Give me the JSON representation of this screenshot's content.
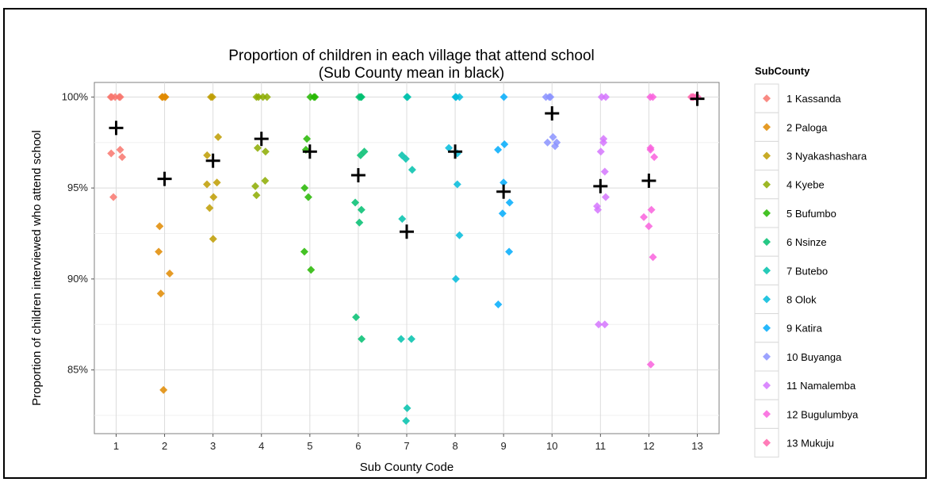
{
  "chart_data": {
    "type": "scatter",
    "title": "Proportion of children in each village that attend school",
    "subtitle": "(Sub County mean in black)",
    "xlabel": "Sub County Code",
    "ylabel": "Proportion of children interviewed who attend school",
    "ylim": [
      81.5,
      100.8
    ],
    "xlim": [
      0.55,
      13.45
    ],
    "x_ticks": [
      "1",
      "2",
      "3",
      "4",
      "5",
      "6",
      "7",
      "8",
      "9",
      "10",
      "11",
      "12",
      "13"
    ],
    "y_ticks": [
      {
        "value": 85,
        "label": "85%"
      },
      {
        "value": 90,
        "label": "90%"
      },
      {
        "value": 95,
        "label": "95%"
      },
      {
        "value": 100,
        "label": "100%"
      }
    ],
    "grid": true,
    "legend_title": "SubCounty",
    "legend_position": "right",
    "mean_marker_color": "#000000",
    "series": [
      {
        "name": "1 Kassanda",
        "code": 1,
        "color": "#F8766D",
        "mean": 98.3,
        "points": [
          100,
          100,
          100,
          100,
          100,
          97.1,
          96.9,
          96.7,
          94.5
        ]
      },
      {
        "name": "2 Paloga",
        "code": 2,
        "color": "#E18A00",
        "mean": 95.5,
        "points": [
          100,
          100,
          100,
          100,
          92.9,
          91.5,
          90.3,
          89.2,
          83.9
        ]
      },
      {
        "name": "3 Nyakashashara",
        "code": 3,
        "color": "#BE9C00",
        "mean": 96.5,
        "points": [
          100,
          100,
          97.8,
          96.8,
          95.3,
          95.2,
          94.5,
          93.9,
          92.2
        ]
      },
      {
        "name": "4 Kyebe",
        "code": 4,
        "color": "#8CAB00",
        "mean": 97.7,
        "points": [
          100,
          100,
          100,
          100,
          97.2,
          97.0,
          95.4,
          95.1,
          94.6
        ]
      },
      {
        "name": "5 Bufumbo",
        "code": 5,
        "color": "#24B700",
        "mean": 97.0,
        "points": [
          100,
          100,
          100,
          97.7,
          97.1,
          95.0,
          94.5,
          91.5,
          90.5
        ]
      },
      {
        "name": "6 Nsinze",
        "code": 6,
        "color": "#00BE70",
        "mean": 95.7,
        "points": [
          100,
          100,
          100,
          97.0,
          96.8,
          94.2,
          93.8,
          93.1,
          87.9,
          86.7
        ]
      },
      {
        "name": "7 Butebo",
        "code": 7,
        "color": "#00C1AB",
        "mean": 92.6,
        "points": [
          100,
          100,
          96.8,
          96.6,
          96.0,
          93.3,
          86.7,
          86.7,
          82.9,
          82.2
        ]
      },
      {
        "name": "8 Olok",
        "code": 8,
        "color": "#00BBDA",
        "mean": 97.0,
        "points": [
          100,
          100,
          100,
          97.2,
          96.9,
          95.2,
          92.4,
          90.0
        ]
      },
      {
        "name": "9 Katira",
        "code": 9,
        "color": "#00ACFC",
        "mean": 94.8,
        "points": [
          100,
          97.4,
          97.1,
          95.3,
          94.2,
          93.6,
          91.5,
          88.6
        ]
      },
      {
        "name": "10 Buyanga",
        "code": 10,
        "color": "#8B93FF",
        "mean": 99.1,
        "points": [
          100,
          100,
          100,
          97.8,
          97.5,
          97.3,
          97.5
        ]
      },
      {
        "name": "11 Namalemba",
        "code": 11,
        "color": "#D575FE",
        "mean": 95.1,
        "points": [
          100,
          100,
          97.7,
          97.5,
          97.0,
          95.9,
          94.5,
          94.0,
          93.8,
          87.5,
          87.5
        ]
      },
      {
        "name": "12 Bugulumbya",
        "code": 12,
        "color": "#F962DD",
        "mean": 95.4,
        "points": [
          100,
          100,
          97.2,
          97.1,
          96.7,
          93.8,
          93.4,
          92.9,
          91.2,
          85.3
        ]
      },
      {
        "name": "13 Mukuju",
        "code": 13,
        "color": "#FF65AC",
        "mean": 99.9,
        "points": [
          100,
          100,
          100,
          100,
          100
        ]
      }
    ]
  }
}
